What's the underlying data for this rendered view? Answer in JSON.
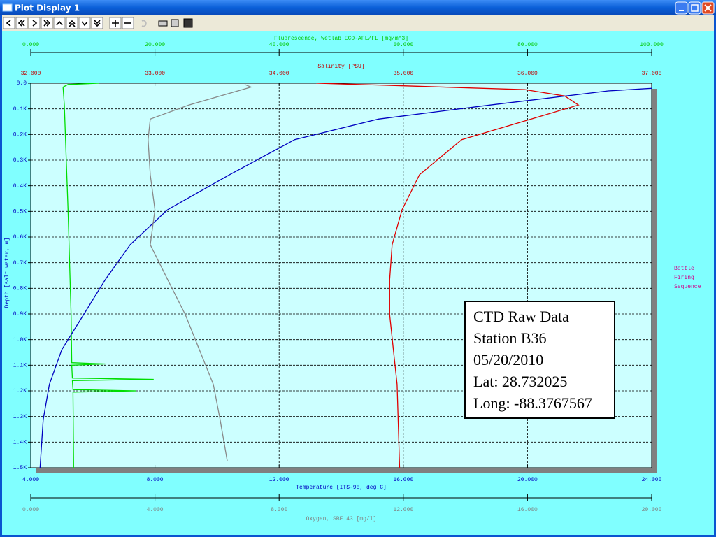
{
  "window": {
    "title": "Plot Display 1"
  },
  "chart_data": {
    "type": "line",
    "ylabel": "Depth [salt water, m]",
    "ylim": [
      0,
      1500
    ],
    "yticks": [
      {
        "value": 0,
        "label": "0.0"
      },
      {
        "value": 100,
        "label": "0.1K"
      },
      {
        "value": 200,
        "label": "0.2K"
      },
      {
        "value": 300,
        "label": "0.3K"
      },
      {
        "value": 400,
        "label": "0.4K"
      },
      {
        "value": 500,
        "label": "0.5K"
      },
      {
        "value": 600,
        "label": "0.6K"
      },
      {
        "value": 700,
        "label": "0.7K"
      },
      {
        "value": 800,
        "label": "0.8K"
      },
      {
        "value": 900,
        "label": "0.9K"
      },
      {
        "value": 1000,
        "label": "1.0K"
      },
      {
        "value": 1100,
        "label": "1.1K"
      },
      {
        "value": 1200,
        "label": "1.2K"
      },
      {
        "value": 1300,
        "label": "1.3K"
      },
      {
        "value": 1400,
        "label": "1.4K"
      },
      {
        "value": 1500,
        "label": "1.5K"
      }
    ],
    "grid": true,
    "x_axes": [
      {
        "label": "Fluorescence, Wetlab ECO-AFL/FL [mg/m^3]",
        "color": "#00c800",
        "xlim": [
          0,
          100
        ],
        "xticks": [
          {
            "value": 0,
            "label": "0.000"
          },
          {
            "value": 20,
            "label": "20.000"
          },
          {
            "value": 40,
            "label": "40.000"
          },
          {
            "value": 60,
            "label": "60.000"
          },
          {
            "value": 80,
            "label": "80.000"
          },
          {
            "value": 100,
            "label": "100.000"
          }
        ]
      },
      {
        "label": "Salinity [PSU]",
        "color": "#c00000",
        "xlim": [
          32,
          37
        ],
        "xticks": [
          {
            "value": 32,
            "label": "32.000"
          },
          {
            "value": 33,
            "label": "33.000"
          },
          {
            "value": 34,
            "label": "34.000"
          },
          {
            "value": 35,
            "label": "35.000"
          },
          {
            "value": 36,
            "label": "36.000"
          },
          {
            "value": 37,
            "label": "37.000"
          }
        ]
      },
      {
        "label": "Temperature [ITS-90, deg C]",
        "color": "#0000c0",
        "xlim": [
          4,
          24
        ],
        "xticks": [
          {
            "value": 4,
            "label": "4.000"
          },
          {
            "value": 8,
            "label": "8.000"
          },
          {
            "value": 12,
            "label": "12.000"
          },
          {
            "value": 16,
            "label": "16.000"
          },
          {
            "value": 20,
            "label": "20.000"
          },
          {
            "value": 24,
            "label": "24.000"
          }
        ]
      },
      {
        "label": "Oxygen, SBE 43 [mg/l]",
        "color": "#808080",
        "xlim": [
          0,
          20
        ],
        "xticks": [
          {
            "value": 0,
            "label": "0.000"
          },
          {
            "value": 4,
            "label": "4.000"
          },
          {
            "value": 8,
            "label": "8.000"
          },
          {
            "value": 12,
            "label": "12.000"
          },
          {
            "value": 16,
            "label": "16.000"
          },
          {
            "value": 20,
            "label": "20.000"
          }
        ]
      }
    ],
    "series": [
      {
        "name": "Fluorescence",
        "color": "#00dd00",
        "x_axis": 0,
        "depth": [
          0,
          5,
          15,
          85,
          494,
          903,
          1090,
          1095,
          1100,
          1150,
          1155,
          1160,
          1195,
          1200,
          1205,
          1500
        ],
        "values": [
          11,
          6,
          5.2,
          5.4,
          6.0,
          6.5,
          6.6,
          12,
          6.6,
          6.7,
          19.8,
          6.7,
          6.8,
          17,
          6.8,
          6.9
        ]
      },
      {
        "name": "Salinity",
        "color": "#e00000",
        "x_axis": 1,
        "depth": [
          0,
          10,
          25,
          50,
          85,
          140,
          220,
          357,
          494,
          630,
          766,
          903,
          1039,
          1175,
          1500
        ],
        "values": [
          34.3,
          35.0,
          35.98,
          36.3,
          36.41,
          36.03,
          35.47,
          35.13,
          34.99,
          34.91,
          34.89,
          34.89,
          34.92,
          34.95,
          34.97
        ]
      },
      {
        "name": "Temperature",
        "color": "#0000c0",
        "x_axis": 2,
        "depth": [
          20,
          30,
          85,
          140,
          220,
          357,
          494,
          630,
          766,
          903,
          1039,
          1175,
          1312,
          1500
        ],
        "values": [
          24.0,
          22.6,
          18.8,
          15.2,
          12.5,
          10.4,
          8.4,
          7.2,
          6.4,
          5.7,
          5.0,
          4.6,
          4.4,
          4.3
        ]
      },
      {
        "name": "Oxygen",
        "color": "#888888",
        "x_axis": 3,
        "depth": [
          5,
          15,
          85,
          140,
          220,
          357,
          494,
          630,
          766,
          903,
          1039,
          1175,
          1312,
          1475
        ],
        "values": [
          6.89,
          7.1,
          5.09,
          3.85,
          3.78,
          3.85,
          4.0,
          3.85,
          4.41,
          4.98,
          5.43,
          5.88,
          6.1,
          6.33
        ]
      }
    ],
    "side_label": [
      "Bottle",
      "Firing",
      "Sequence"
    ],
    "annotation": [
      "CTD Raw Data",
      "Station B36",
      "05/20/2010",
      "Lat: 28.732025",
      "Long: -88.3767567"
    ]
  }
}
